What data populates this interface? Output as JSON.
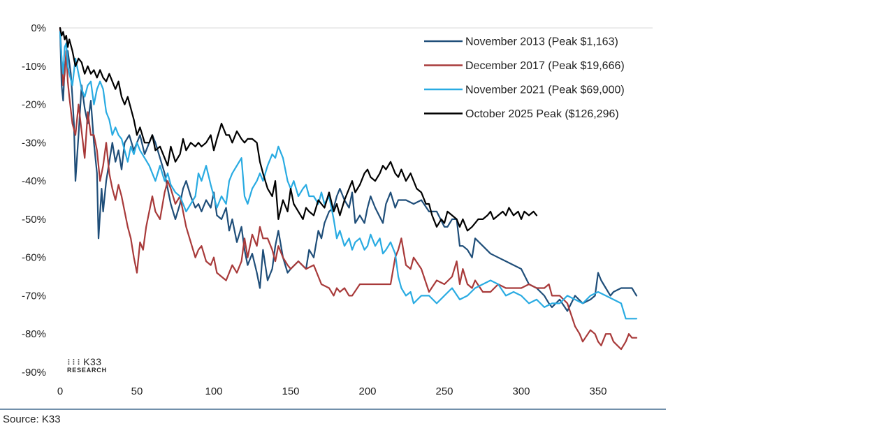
{
  "source_text": "Source: K33",
  "logo": {
    "name": "K33",
    "subtitle": "RESEARCH"
  },
  "colors": {
    "nov2013": "#1f4e79",
    "dec2017": "#a83a3a",
    "nov2021": "#29abe2",
    "oct2025": "#000000",
    "grid": "#d9d9d9",
    "bottom_rule": "#1f4e79"
  },
  "chart_data": {
    "type": "line",
    "xlabel": "",
    "ylabel": "",
    "xlim": [
      0,
      380
    ],
    "ylim": [
      -90,
      0
    ],
    "x_ticks": [
      "0",
      "50",
      "100",
      "150",
      "200",
      "250",
      "300",
      "350"
    ],
    "y_ticks": [
      "0%",
      "-10%",
      "-20%",
      "-30%",
      "-40%",
      "-50%",
      "-60%",
      "-70%",
      "-80%",
      "-90%"
    ],
    "legend_position": "top-right",
    "series": [
      {
        "name": "November 2013 (Peak $1,163)",
        "color_key": "nov2013",
        "x": [
          0,
          1,
          2,
          3,
          5,
          7,
          8,
          9,
          10,
          12,
          14,
          16,
          18,
          20,
          22,
          24,
          25,
          27,
          28,
          30,
          32,
          34,
          36,
          38,
          40,
          42,
          45,
          48,
          50,
          52,
          55,
          58,
          60,
          62,
          65,
          68,
          70,
          72,
          75,
          78,
          80,
          82,
          85,
          88,
          90,
          92,
          95,
          98,
          100,
          102,
          105,
          108,
          110,
          112,
          115,
          118,
          120,
          122,
          125,
          128,
          130,
          132,
          135,
          138,
          140,
          142,
          145,
          148,
          150,
          155,
          160,
          162,
          165,
          168,
          170,
          172,
          175,
          178,
          180,
          182,
          185,
          188,
          190,
          192,
          195,
          198,
          200,
          202,
          205,
          210,
          212,
          215,
          218,
          220,
          225,
          230,
          235,
          240,
          245,
          250,
          252,
          255,
          258,
          260,
          262,
          265,
          268,
          270,
          275,
          280,
          285,
          290,
          295,
          300,
          305,
          310,
          315,
          318,
          320,
          325,
          330,
          335,
          340,
          345,
          348,
          350,
          352,
          355,
          358,
          360,
          365,
          370,
          372,
          375
        ],
        "y": [
          -1,
          -15,
          -19,
          -10,
          -6,
          -12,
          -18,
          -25,
          -40,
          -28,
          -15,
          -21,
          -25,
          -19,
          -30,
          -38,
          -55,
          -42,
          -48,
          -40,
          -35,
          -30,
          -35,
          -32,
          -37,
          -30,
          -28,
          -32,
          -30,
          -28,
          -33,
          -30,
          -28,
          -30,
          -34,
          -38,
          -42,
          -46,
          -50,
          -46,
          -42,
          -40,
          -44,
          -47,
          -46,
          -48,
          -45,
          -47,
          -43,
          -49,
          -50,
          -47,
          -53,
          -50,
          -56,
          -52,
          -58,
          -62,
          -59,
          -64,
          -68,
          -58,
          -66,
          -63,
          -57,
          -53,
          -60,
          -64,
          -63,
          -61,
          -63,
          -58,
          -60,
          -53,
          -55,
          -51,
          -48,
          -47,
          -44,
          -42,
          -45,
          -47,
          -43,
          -51,
          -49,
          -51,
          -47,
          -44,
          -47,
          -51,
          -46,
          -43,
          -47,
          -45,
          -45,
          -46,
          -45,
          -48,
          -48,
          -52,
          -52,
          -50,
          -50,
          -57,
          -57,
          -58,
          -60,
          -55,
          -57,
          -59,
          -60,
          -61,
          -62,
          -63,
          -67,
          -68,
          -70,
          -72,
          -73,
          -71,
          -74,
          -70,
          -72,
          -71,
          -70,
          -64,
          -66,
          -68,
          -70,
          -69,
          -68,
          -68,
          -68,
          -70
        ]
      },
      {
        "name": "December 2017 (Peak $19,666)",
        "color_key": "dec2017",
        "x": [
          0,
          1,
          2,
          3,
          4,
          5,
          6,
          8,
          10,
          12,
          14,
          16,
          18,
          20,
          22,
          24,
          26,
          28,
          30,
          32,
          34,
          36,
          38,
          40,
          42,
          44,
          46,
          48,
          50,
          52,
          54,
          56,
          58,
          60,
          62,
          65,
          68,
          70,
          72,
          75,
          78,
          80,
          82,
          85,
          88,
          90,
          92,
          95,
          98,
          100,
          102,
          105,
          108,
          110,
          112,
          115,
          118,
          120,
          122,
          125,
          128,
          130,
          132,
          135,
          138,
          140,
          142,
          145,
          148,
          150,
          155,
          160,
          165,
          170,
          175,
          178,
          180,
          182,
          185,
          188,
          190,
          195,
          200,
          205,
          210,
          215,
          218,
          220,
          222,
          225,
          228,
          230,
          235,
          240,
          245,
          250,
          255,
          258,
          260,
          262,
          265,
          268,
          270,
          275,
          280,
          285,
          290,
          295,
          300,
          305,
          310,
          315,
          318,
          320,
          325,
          330,
          335,
          338,
          340,
          345,
          348,
          350,
          352,
          355,
          358,
          360,
          365,
          368,
          370,
          372,
          375
        ],
        "y": [
          0,
          -8,
          -15,
          -12,
          -6,
          -14,
          -18,
          -25,
          -28,
          -20,
          -27,
          -34,
          -22,
          -28,
          -28,
          -32,
          -40,
          -36,
          -30,
          -38,
          -42,
          -45,
          -41,
          -44,
          -48,
          -52,
          -55,
          -60,
          -64,
          -56,
          -58,
          -52,
          -48,
          -44,
          -48,
          -50,
          -43,
          -40,
          -42,
          -46,
          -44,
          -48,
          -52,
          -56,
          -60,
          -58,
          -57,
          -61,
          -62,
          -60,
          -64,
          -65,
          -66,
          -64,
          -62,
          -64,
          -61,
          -55,
          -60,
          -54,
          -57,
          -52,
          -55,
          -55,
          -58,
          -61,
          -57,
          -60,
          -62,
          -63,
          -61,
          -63,
          -62,
          -67,
          -68,
          -70,
          -68,
          -69,
          -68,
          -70,
          -70,
          -67,
          -67,
          -67,
          -67,
          -67,
          -60,
          -58,
          -55,
          -62,
          -63,
          -60,
          -63,
          -69,
          -66,
          -67,
          -65,
          -61,
          -67,
          -63,
          -67,
          -68,
          -66,
          -69,
          -69,
          -67,
          -68,
          -68,
          -68,
          -67,
          -68,
          -68,
          -67,
          -70,
          -70,
          -72,
          -78,
          -80,
          -82,
          -79,
          -80,
          -82,
          -83,
          -80,
          -80,
          -82,
          -84,
          -82,
          -80,
          -81,
          -81
        ]
      },
      {
        "name": "November 2021 (Peak $69,000)",
        "color_key": "nov2021",
        "x": [
          0,
          1,
          2,
          3,
          4,
          5,
          6,
          8,
          10,
          12,
          14,
          16,
          18,
          20,
          22,
          24,
          26,
          28,
          30,
          32,
          34,
          36,
          38,
          40,
          42,
          44,
          46,
          48,
          50,
          52,
          55,
          58,
          60,
          62,
          65,
          68,
          70,
          72,
          75,
          78,
          80,
          82,
          85,
          88,
          90,
          92,
          95,
          98,
          100,
          102,
          105,
          108,
          110,
          112,
          115,
          118,
          120,
          122,
          125,
          128,
          130,
          132,
          135,
          138,
          140,
          142,
          145,
          148,
          150,
          152,
          155,
          158,
          160,
          162,
          165,
          168,
          170,
          172,
          175,
          178,
          180,
          182,
          185,
          188,
          190,
          192,
          195,
          198,
          200,
          202,
          205,
          208,
          210,
          212,
          215,
          218,
          220,
          222,
          225,
          228,
          230,
          235,
          240,
          245,
          250,
          255,
          260,
          265,
          270,
          275,
          280,
          285,
          290,
          295,
          300,
          305,
          310,
          315,
          320,
          325,
          330,
          335,
          340,
          345,
          350,
          355,
          360,
          365,
          368,
          370,
          372,
          375
        ],
        "y": [
          -1,
          -8,
          -12,
          -5,
          -4,
          -10,
          -12,
          -15,
          -8,
          -12,
          -16,
          -18,
          -15,
          -14,
          -20,
          -16,
          -14,
          -16,
          -22,
          -24,
          -28,
          -26,
          -28,
          -29,
          -32,
          -35,
          -31,
          -33,
          -30,
          -32,
          -34,
          -36,
          -38,
          -40,
          -36,
          -40,
          -38,
          -41,
          -43,
          -44,
          -46,
          -48,
          -46,
          -44,
          -38,
          -40,
          -36,
          -41,
          -44,
          -47,
          -44,
          -46,
          -40,
          -38,
          -36,
          -34,
          -44,
          -46,
          -42,
          -40,
          -38,
          -40,
          -36,
          -33,
          -34,
          -31,
          -34,
          -40,
          -42,
          -40,
          -44,
          -42,
          -41,
          -44,
          -44,
          -46,
          -43,
          -46,
          -44,
          -50,
          -55,
          -53,
          -57,
          -55,
          -58,
          -56,
          -55,
          -58,
          -57,
          -54,
          -57,
          -55,
          -59,
          -58,
          -56,
          -59,
          -65,
          -68,
          -70,
          -69,
          -72,
          -70,
          -70,
          -72,
          -70,
          -68,
          -71,
          -70,
          -68,
          -67,
          -66,
          -67,
          -70,
          -69,
          -70,
          -72,
          -71,
          -73,
          -72,
          -72,
          -70,
          -71,
          -72,
          -70,
          -69,
          -70,
          -71,
          -72,
          -76,
          -76,
          -76,
          -76
        ]
      },
      {
        "name": "October 2025 Peak ($126,296)",
        "color_key": "oct2025",
        "x": [
          0,
          1,
          2,
          3,
          4,
          5,
          6,
          8,
          10,
          12,
          14,
          16,
          18,
          20,
          22,
          24,
          26,
          28,
          30,
          32,
          34,
          36,
          38,
          40,
          42,
          44,
          46,
          48,
          50,
          52,
          55,
          58,
          60,
          62,
          65,
          68,
          70,
          72,
          75,
          78,
          80,
          82,
          85,
          88,
          90,
          92,
          95,
          98,
          100,
          102,
          105,
          108,
          110,
          112,
          115,
          118,
          120,
          122,
          125,
          128,
          130,
          132,
          135,
          138,
          140,
          142,
          145,
          148,
          150,
          152,
          155,
          158,
          160,
          162,
          165,
          168,
          170,
          172,
          175,
          178,
          180,
          182,
          185,
          188,
          190,
          192,
          195,
          198,
          200,
          202,
          205,
          208,
          210,
          212,
          215,
          218,
          220,
          222,
          225,
          228,
          230,
          232,
          235,
          238,
          240,
          242,
          245,
          248,
          250,
          252,
          255,
          258,
          260,
          262,
          265,
          268,
          270,
          272,
          275,
          278,
          280,
          282,
          285,
          288,
          290,
          292,
          295,
          298,
          300,
          302,
          305,
          308,
          310
        ],
        "y": [
          0,
          -2,
          -1,
          -3,
          -2,
          -5,
          -3,
          -6,
          -10,
          -8,
          -9,
          -12,
          -10,
          -12,
          -11,
          -13,
          -11,
          -13,
          -14,
          -12,
          -14,
          -16,
          -14,
          -18,
          -20,
          -18,
          -21,
          -24,
          -28,
          -26,
          -30,
          -30,
          -28,
          -32,
          -31,
          -34,
          -36,
          -31,
          -35,
          -33,
          -29,
          -32,
          -30,
          -31,
          -30,
          -31,
          -30,
          -28,
          -32,
          -29,
          -25,
          -28,
          -28,
          -30,
          -27,
          -29,
          -30,
          -29,
          -29,
          -30,
          -35,
          -38,
          -42,
          -44,
          -40,
          -50,
          -45,
          -48,
          -42,
          -46,
          -48,
          -50,
          -47,
          -48,
          -49,
          -45,
          -46,
          -47,
          -43,
          -48,
          -46,
          -49,
          -45,
          -42,
          -40,
          -43,
          -41,
          -38,
          -37,
          -39,
          -40,
          -38,
          -36,
          -37,
          -35,
          -38,
          -39,
          -37,
          -40,
          -38,
          -40,
          -42,
          -43,
          -46,
          -46,
          -49,
          -52,
          -50,
          -51,
          -48,
          -49,
          -50,
          -52,
          -50,
          -53,
          -52,
          -51,
          -50,
          -50,
          -49,
          -48,
          -50,
          -49,
          -48,
          -49,
          -47,
          -49,
          -48,
          -50,
          -48,
          -49,
          -48,
          -49
        ]
      }
    ]
  }
}
